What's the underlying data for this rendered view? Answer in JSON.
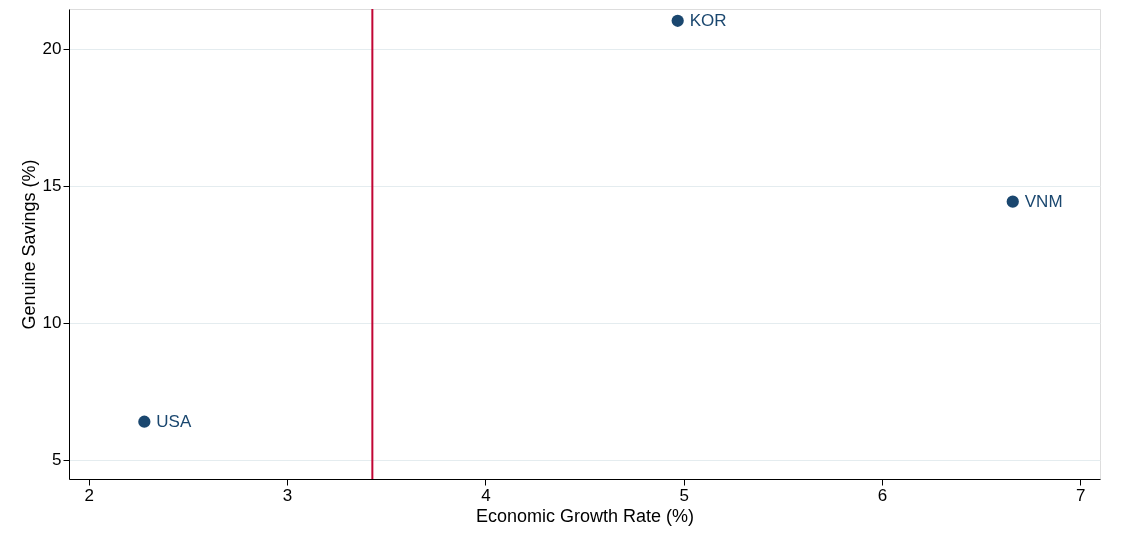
{
  "chart_data": {
    "type": "scatter",
    "xlabel": "Economic Growth Rate (%)",
    "ylabel": "Genuine Savings (%)",
    "x": [
      2.28,
      4.97,
      6.66
    ],
    "series": [
      {
        "color": "#1a476f",
        "values": [
          6.39,
          21.02,
          14.42
        ]
      }
    ],
    "xlim": [
      1.9,
      7.1
    ],
    "ylim": [
      4.3,
      21.45
    ],
    "xticks": [
      2,
      3,
      4,
      5,
      6,
      7
    ],
    "yticks": [
      5,
      10,
      15,
      20
    ],
    "grid": "y",
    "marker": "circle",
    "ref_lines": [
      {
        "axis": "x",
        "value": 3.43,
        "color": "#c10534"
      }
    ],
    "annotations": [
      {
        "text": "USA",
        "x": 2.28,
        "y": 6.39
      },
      {
        "text": "KOR",
        "x": 4.97,
        "y": 21.02
      },
      {
        "text": "VNM",
        "x": 6.66,
        "y": 14.42
      }
    ]
  }
}
